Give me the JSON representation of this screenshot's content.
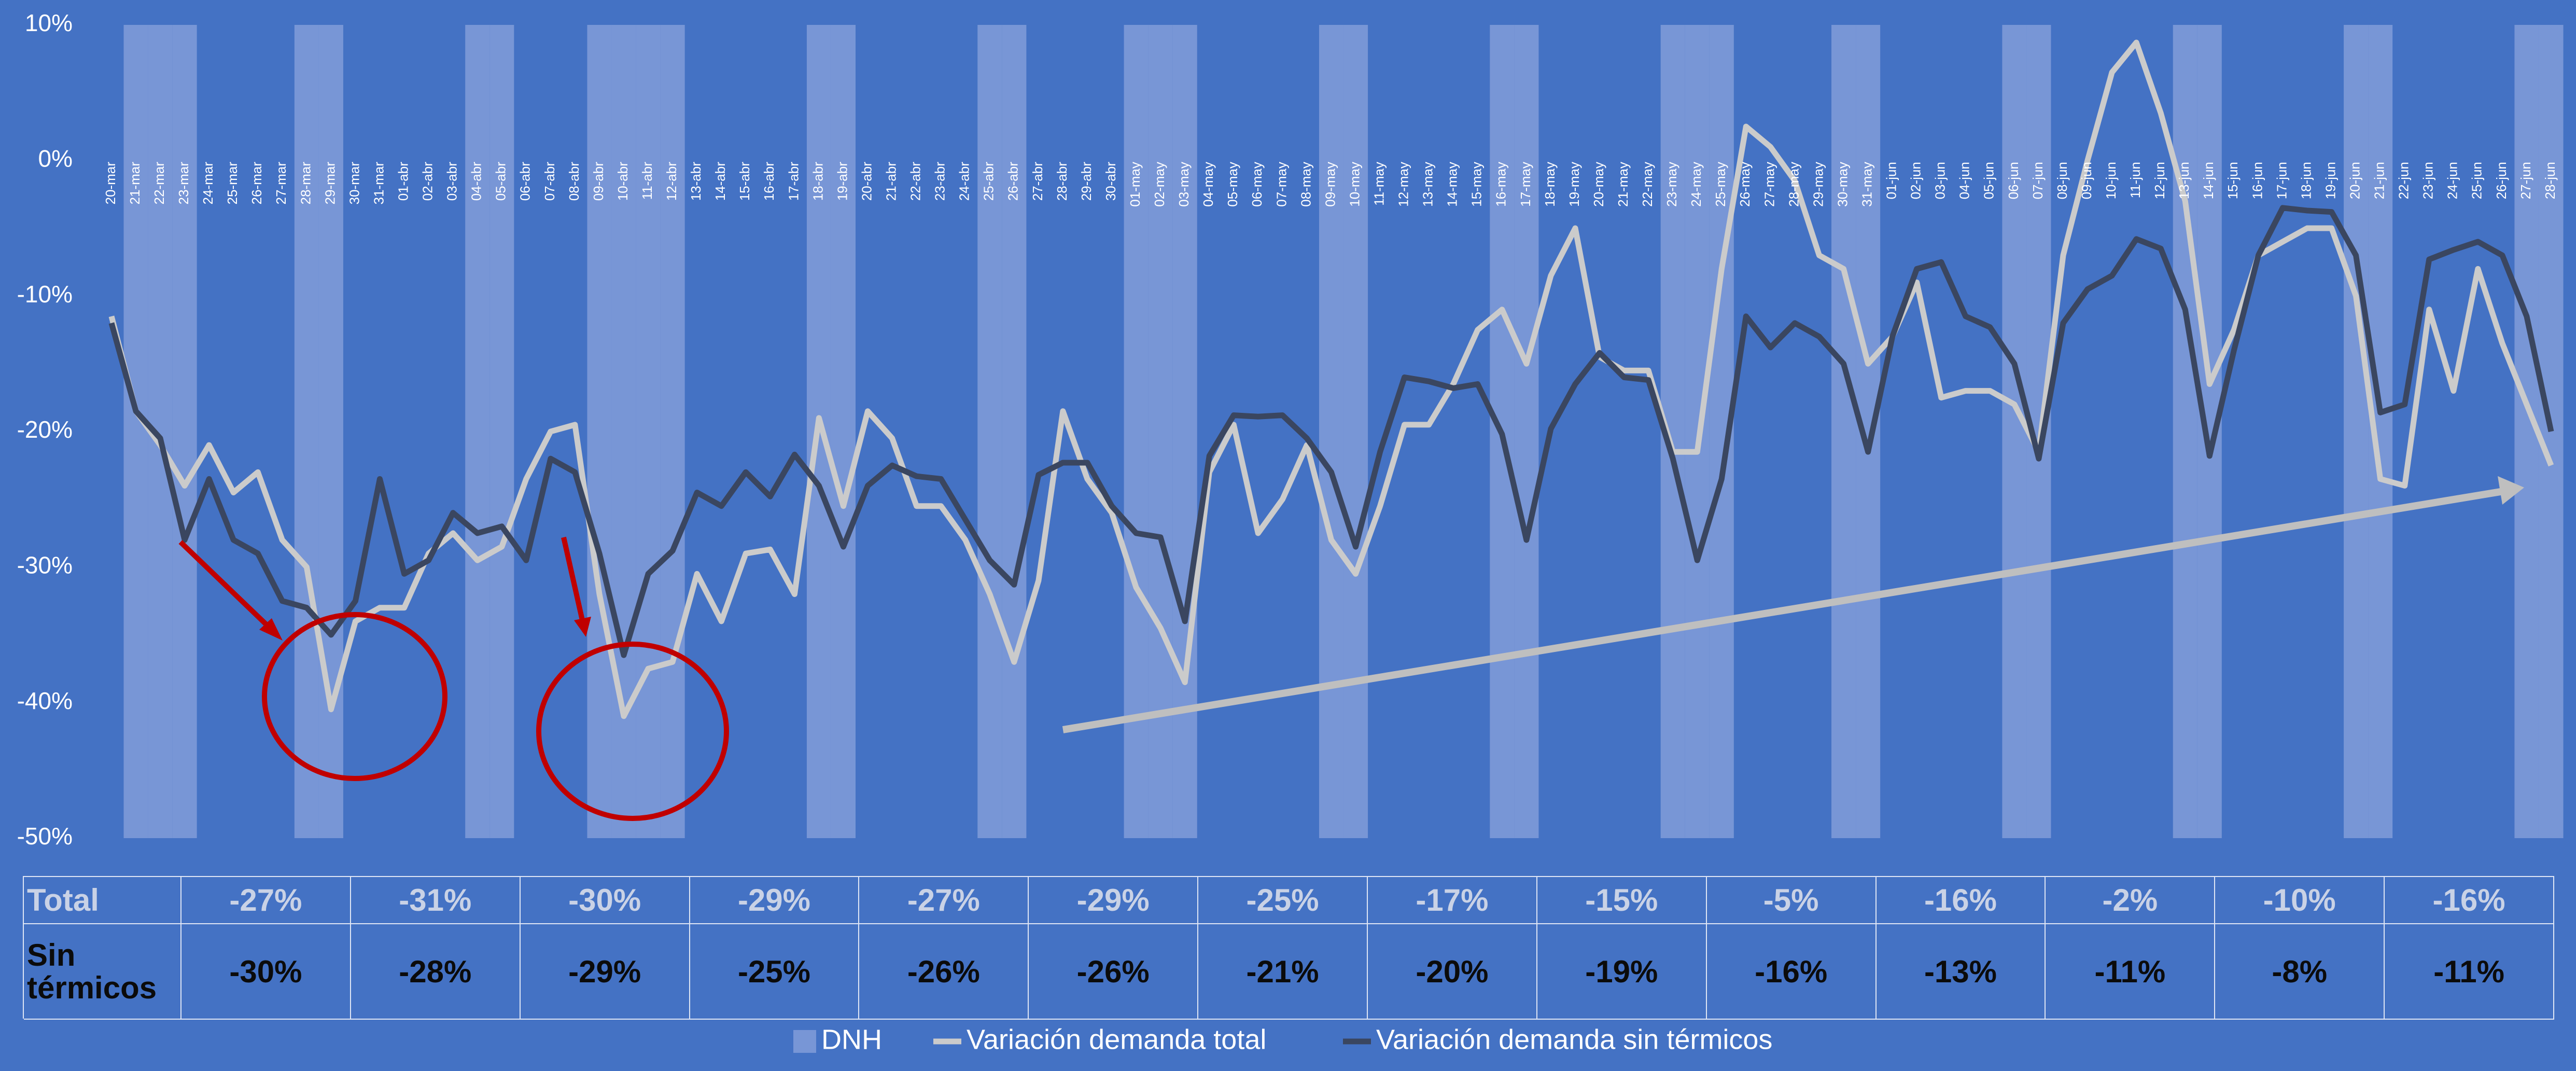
{
  "chart_data": {
    "type": "line",
    "categories": [
      "20-mar",
      "21-mar",
      "22-mar",
      "23-mar",
      "24-mar",
      "25-mar",
      "26-mar",
      "27-mar",
      "28-mar",
      "29-mar",
      "30-mar",
      "31-mar",
      "01-abr",
      "02-abr",
      "03-abr",
      "04-abr",
      "05-abr",
      "06-abr",
      "07-abr",
      "08-abr",
      "09-abr",
      "10-abr",
      "11-abr",
      "12-abr",
      "13-abr",
      "14-abr",
      "15-abr",
      "16-abr",
      "17-abr",
      "18-abr",
      "19-abr",
      "20-abr",
      "21-abr",
      "22-abr",
      "23-abr",
      "24-abr",
      "25-abr",
      "26-abr",
      "27-abr",
      "28-abr",
      "29-abr",
      "30-abr",
      "01-may",
      "02-may",
      "03-may",
      "04-may",
      "05-may",
      "06-may",
      "07-may",
      "08-may",
      "09-may",
      "10-may",
      "11-may",
      "12-may",
      "13-may",
      "14-may",
      "15-may",
      "16-may",
      "17-may",
      "18-may",
      "19-may",
      "20-may",
      "21-may",
      "22-may",
      "23-may",
      "24-may",
      "25-may",
      "26-may",
      "27-may",
      "28-may",
      "29-may",
      "30-may",
      "31-may",
      "01-jun",
      "02-jun",
      "03-jun",
      "04-jun",
      "05-jun",
      "06-jun",
      "07-jun",
      "08-jun",
      "09-jun",
      "10-jun",
      "11-jun",
      "12-jun",
      "13-jun",
      "14-jun",
      "15-jun",
      "16-jun",
      "17-jun",
      "18-jun",
      "19-jun",
      "20-jun",
      "21-jun",
      "22-jun",
      "23-jun",
      "24-jun",
      "25-jun",
      "26-jun",
      "27-jun",
      "28-jun"
    ],
    "series": [
      {
        "name": "DNH",
        "type": "bar",
        "color": "#7896d6",
        "values": [
          null,
          10,
          10,
          10,
          null,
          null,
          null,
          null,
          10,
          10,
          null,
          null,
          null,
          null,
          null,
          10,
          10,
          null,
          null,
          null,
          10,
          10,
          10,
          10,
          null,
          null,
          null,
          null,
          null,
          10,
          10,
          null,
          null,
          null,
          null,
          null,
          10,
          10,
          null,
          null,
          null,
          null,
          10,
          10,
          10,
          null,
          null,
          null,
          null,
          null,
          10,
          10,
          null,
          null,
          null,
          null,
          null,
          10,
          10,
          null,
          null,
          null,
          null,
          null,
          10,
          10,
          10,
          null,
          null,
          null,
          null,
          10,
          10,
          null,
          null,
          null,
          null,
          null,
          10,
          10,
          null,
          null,
          null,
          null,
          null,
          10,
          10,
          null,
          null,
          null,
          null,
          null,
          10,
          10,
          null,
          null,
          null,
          null,
          null,
          10,
          10
        ]
      },
      {
        "name": "Variación demanda total",
        "type": "line",
        "color": "#cbcbcb",
        "values": [
          -11.5,
          -18.5,
          -21,
          -24,
          -21,
          -24.5,
          -23,
          -28,
          -30,
          -40.5,
          -34,
          -33,
          -33,
          -29,
          -27.5,
          -29.5,
          -28.5,
          -23.5,
          -20,
          -19.5,
          -32,
          -41,
          -37.5,
          -37,
          -30.5,
          -34,
          -29,
          -28.7,
          -32,
          -19,
          -25.5,
          -18.5,
          -20.5,
          -25.5,
          -25.5,
          -28,
          -32,
          -37,
          -31,
          -18.5,
          -23.5,
          -26,
          -31.5,
          -34.5,
          -38.5,
          -23,
          -19.5,
          -27.5,
          -25,
          -21,
          -28,
          -30.5,
          -25.5,
          -19.5,
          -19.5,
          -16.5,
          -12.5,
          -11,
          -15,
          -8.5,
          -5,
          -14.5,
          -15.5,
          -15.5,
          -21.5,
          -21.5,
          -8,
          2.5,
          1,
          -1.5,
          -7,
          -8,
          -15,
          -13,
          -9,
          -17.5,
          -17,
          -17,
          -18,
          -21.5,
          -7,
          0,
          6.5,
          8.7,
          3.5,
          -3,
          -16.5,
          -12.5,
          -7,
          -6,
          -5,
          -5,
          -10,
          -23.5,
          -24,
          -11,
          -17,
          -8,
          -13.5,
          -18,
          -22.5
        ]
      },
      {
        "name": "Variación demanda sin térmicos",
        "type": "line",
        "color": "#3a4660",
        "values": [
          -12,
          -18.5,
          -20.5,
          -28,
          -23.5,
          -28,
          -29,
          -32.5,
          -33,
          -35,
          -32.5,
          -23.5,
          -30.5,
          -29.5,
          -26,
          -27.5,
          -27,
          -29.5,
          -22,
          -23,
          -29,
          -36.5,
          -30.5,
          -28.8,
          -24.5,
          -25.5,
          -23,
          -24.8,
          -21.7,
          -24,
          -28.5,
          -24,
          -22.5,
          -23.3,
          -23.5,
          -26.5,
          -29.5,
          -31.3,
          -23.2,
          -22.3,
          -22.3,
          -25.5,
          -27.5,
          -27.8,
          -34,
          -21.8,
          -18.8,
          -18.9,
          -18.8,
          -20.5,
          -23,
          -28.5,
          -21.5,
          -16,
          -16.3,
          -16.8,
          -16.5,
          -20.2,
          -28,
          -19.8,
          -16.5,
          -14.2,
          -16,
          -16.2,
          -22,
          -29.5,
          -23.5,
          -11.5,
          -13.8,
          -12,
          -13,
          -15,
          -21.5,
          -13,
          -8,
          -7.5,
          -11.5,
          -12.3,
          -15,
          -22,
          -12,
          -9.5,
          -8.5,
          -5.8,
          -6.5,
          -11,
          -21.8,
          -14,
          -7,
          -3.5,
          -3.7,
          -3.8,
          -7,
          -18.6,
          -18,
          -7.3,
          -6.6,
          -6,
          -7,
          -11.5,
          -20
        ]
      }
    ],
    "ylim": [
      -50,
      10
    ],
    "yticks": [
      {
        "value": 10,
        "label": "10%"
      },
      {
        "value": 0,
        "label": "0%"
      },
      {
        "value": -10,
        "label": "-10%"
      },
      {
        "value": -20,
        "label": "-20%"
      },
      {
        "value": -30,
        "label": "-30%"
      },
      {
        "value": -40,
        "label": "-40%"
      },
      {
        "value": -50,
        "label": "-50%"
      }
    ],
    "grid": false,
    "legend": "bottom",
    "data_table": {
      "rows": [
        [
          "Total",
          "-27%",
          "-31%",
          "-30%",
          "-29%",
          "-27%",
          "-29%",
          "-25%",
          "-17%",
          "-15%",
          "-5%",
          "-16%",
          "-2%",
          "-10%",
          "-16%"
        ],
        [
          "Sin térmicos",
          "-30%",
          "-28%",
          "-29%",
          "-25%",
          "-26%",
          "-26%",
          "-21%",
          "-20%",
          "-19%",
          "-16%",
          "-13%",
          "-11%",
          "-8%",
          "-11%"
        ]
      ]
    }
  }
}
